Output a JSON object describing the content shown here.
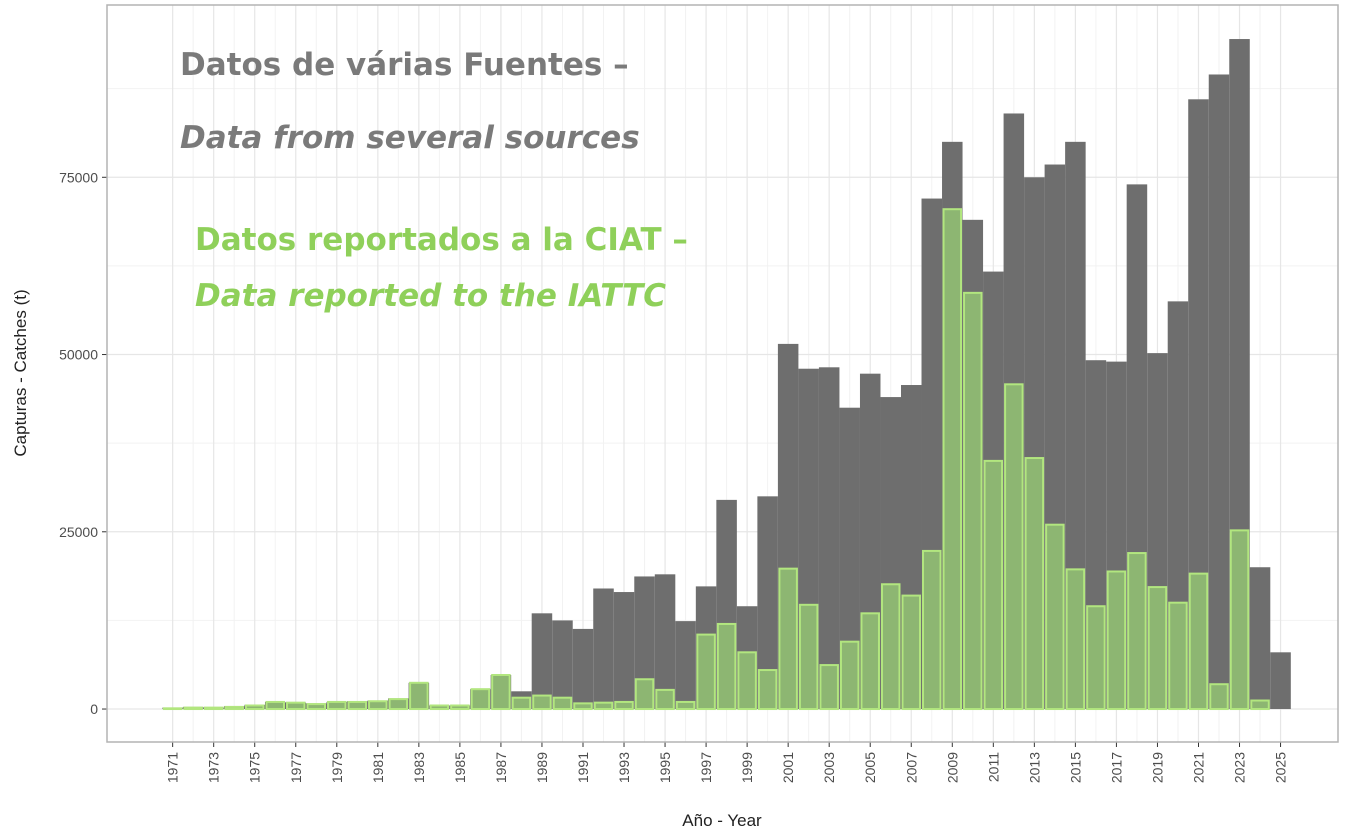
{
  "chart_data": {
    "type": "bar",
    "overlay": true,
    "xlabel": "Año - Year",
    "ylabel": "Capturas - Catches (t)",
    "x": [
      1971,
      1972,
      1973,
      1974,
      1975,
      1976,
      1977,
      1978,
      1979,
      1980,
      1981,
      1982,
      1983,
      1984,
      1985,
      1986,
      1987,
      1988,
      1989,
      1990,
      1991,
      1992,
      1993,
      1994,
      1995,
      1996,
      1997,
      1998,
      1999,
      2000,
      2001,
      2002,
      2003,
      2004,
      2005,
      2006,
      2007,
      2008,
      2009,
      2010,
      2011,
      2012,
      2013,
      2014,
      2015,
      2016,
      2017,
      2018,
      2019,
      2020,
      2021,
      2022,
      2023,
      2024,
      2025
    ],
    "series": [
      {
        "color": "#6e6e6e",
        "values": [
          200,
          300,
          200,
          400,
          600,
          1000,
          900,
          800,
          1000,
          1100,
          1200,
          1500,
          3700,
          500,
          500,
          2800,
          4800,
          2500,
          13500,
          12500,
          11300,
          17000,
          16500,
          18700,
          19000,
          12400,
          17300,
          29500,
          14500,
          30000,
          51500,
          48000,
          48200,
          42500,
          47300,
          44000,
          45700,
          72000,
          80000,
          69000,
          61700,
          84000,
          75000,
          76800,
          80000,
          49200,
          49000,
          74000,
          50200,
          57500,
          86000,
          89500,
          94500,
          20000,
          8000
        ]
      },
      {
        "color": "#8db672",
        "edgecolor": "#b2e67f",
        "values": [
          100,
          200,
          200,
          300,
          500,
          1000,
          900,
          700,
          1000,
          1000,
          1100,
          1400,
          3700,
          500,
          500,
          2800,
          4800,
          1600,
          1900,
          1600,
          800,
          900,
          1000,
          4200,
          2700,
          1000,
          10500,
          12000,
          8000,
          5500,
          19800,
          14700,
          6200,
          9500,
          13500,
          17600,
          16000,
          22300,
          70500,
          58700,
          35000,
          45800,
          35400,
          26000,
          19700,
          14500,
          19400,
          22000,
          17200,
          15000,
          19100,
          3500,
          25200,
          1200,
          null
        ]
      }
    ],
    "annotations": [
      {
        "lines": [
          "Datos de várias Fuentes –",
          "Data from several sources"
        ],
        "color": "#7a7a7a"
      },
      {
        "lines": [
          "Datos reportados a la CIAT –",
          "Data reported to the IATTC"
        ],
        "color": "#8fd05a"
      }
    ],
    "xlim": [
      1967.8,
      2027.8
    ],
    "xticks": [
      1971,
      1973,
      1975,
      1977,
      1979,
      1981,
      1983,
      1985,
      1987,
      1989,
      1991,
      1993,
      1995,
      1997,
      1999,
      2001,
      2003,
      2005,
      2007,
      2009,
      2011,
      2013,
      2015,
      2017,
      2019,
      2021,
      2023,
      2025
    ],
    "ylim": [
      -4650,
      99300
    ],
    "yticks": [
      0,
      25000,
      50000,
      75000
    ],
    "grid": true
  }
}
